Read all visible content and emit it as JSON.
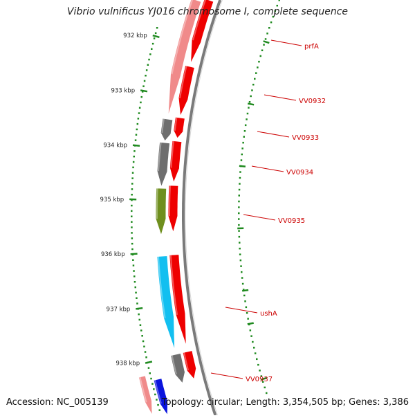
{
  "title": "Vibrio vulnificus YJ016 chromosome I, complete sequence",
  "footer": {
    "accession": "Accession: NC_005139",
    "summary": "Topology: circular; Length: 3,354,505 bp; Genes: 3,386"
  },
  "ticks": [
    {
      "label": "932 kbp"
    },
    {
      "label": "933 kbp"
    },
    {
      "label": "934 kbp"
    },
    {
      "label": "935 kbp"
    },
    {
      "label": "936 kbp"
    },
    {
      "label": "937 kbp"
    },
    {
      "label": "938 kbp"
    }
  ],
  "genes": [
    {
      "label": "prfA"
    },
    {
      "label": "VV0932"
    },
    {
      "label": "VV0933"
    },
    {
      "label": "VV0934"
    },
    {
      "label": "VV0935"
    },
    {
      "label": "ushA"
    },
    {
      "label": "VV0937"
    }
  ],
  "colors": {
    "cds": "#ee0000",
    "gene_pink": "#f08a8a",
    "gene_gray": "#6e6e6e",
    "gene_green": "#6f8f1e",
    "gene_cyan": "#12bff0",
    "gene_blue": "#0a14dd",
    "backbone": "#7a7a7a",
    "tick": "#1f8a1f",
    "label": "#cc0000"
  }
}
